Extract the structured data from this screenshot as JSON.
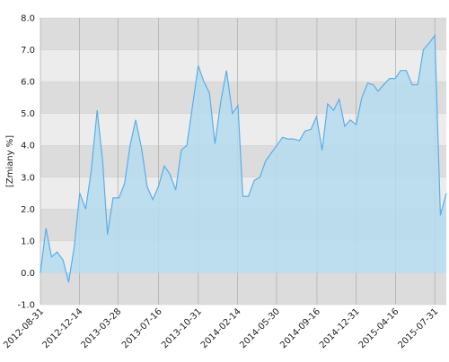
{
  "chart_data": {
    "type": "area",
    "y_label": "[Zmiany %]",
    "x": [
      "2012-08-31",
      "2012-09-15",
      "2012-09-30",
      "2012-10-15",
      "2012-10-31",
      "2012-11-15",
      "2012-11-30",
      "2012-12-15",
      "2012-12-31",
      "2013-01-15",
      "2013-01-31",
      "2013-02-15",
      "2013-02-28",
      "2013-03-15",
      "2013-03-31",
      "2013-04-15",
      "2013-04-30",
      "2013-05-15",
      "2013-05-31",
      "2013-06-15",
      "2013-06-30",
      "2013-07-15",
      "2013-07-31",
      "2013-08-15",
      "2013-08-31",
      "2013-09-15",
      "2013-09-30",
      "2013-10-15",
      "2013-10-31",
      "2013-11-15",
      "2013-11-30",
      "2013-12-15",
      "2013-12-31",
      "2014-01-15",
      "2014-01-31",
      "2014-02-15",
      "2014-02-28",
      "2014-03-15",
      "2014-03-31",
      "2014-04-15",
      "2014-04-30",
      "2014-05-15",
      "2014-05-31",
      "2014-06-15",
      "2014-06-30",
      "2014-07-15",
      "2014-07-31",
      "2014-08-15",
      "2014-08-31",
      "2014-09-15",
      "2014-09-30",
      "2014-10-15",
      "2014-10-31",
      "2014-11-15",
      "2014-11-30",
      "2014-12-15",
      "2014-12-31",
      "2015-01-15",
      "2015-01-31",
      "2015-02-15",
      "2015-02-28",
      "2015-03-15",
      "2015-03-31",
      "2015-04-15",
      "2015-04-30",
      "2015-05-15",
      "2015-05-31",
      "2015-06-15",
      "2015-06-30",
      "2015-07-15",
      "2015-07-31",
      "2015-08-15",
      "2015-08-31"
    ],
    "series": [
      {
        "color": "#5aaee8",
        "fill": "#b5dcf0",
        "values": [
          0.0,
          1.4,
          0.5,
          0.65,
          0.4,
          -0.3,
          0.8,
          2.5,
          2.0,
          3.2,
          5.1,
          3.5,
          1.2,
          2.35,
          2.35,
          2.8,
          4.0,
          4.8,
          3.9,
          2.7,
          2.3,
          2.7,
          3.35,
          3.1,
          2.6,
          3.85,
          4.0,
          5.2,
          6.5,
          6.0,
          5.65,
          4.05,
          5.4,
          6.35,
          5.0,
          5.25,
          2.4,
          2.4,
          2.9,
          3.0,
          3.5,
          3.75,
          4.0,
          4.25,
          4.2,
          4.2,
          4.15,
          4.45,
          4.5,
          4.9,
          3.85,
          5.3,
          5.1,
          5.45,
          4.6,
          4.8,
          4.65,
          5.5,
          5.95,
          5.9,
          5.7,
          5.9,
          6.1,
          6.1,
          6.35,
          6.35,
          5.9,
          5.9,
          7.0,
          7.2,
          7.45,
          1.8,
          2.5
        ]
      }
    ],
    "xlim": [
      "2012-08-31",
      "2015-08-31"
    ],
    "xticks": [
      "2012-08-31",
      "2012-12-14",
      "2013-03-28",
      "2013-07-16",
      "2013-10-31",
      "2014-02-14",
      "2014-05-30",
      "2014-09-16",
      "2014-12-31",
      "2015-04-16",
      "2015-07-31"
    ],
    "ylim": [
      -1,
      8
    ],
    "yticks": [
      {
        "value": -1,
        "label": "-1.0"
      },
      {
        "value": 0,
        "label": "0.0"
      },
      {
        "value": 1,
        "label": "1.0"
      },
      {
        "value": 2,
        "label": "2.0"
      },
      {
        "value": 3,
        "label": "3.0"
      },
      {
        "value": 4,
        "label": "4.0"
      },
      {
        "value": 5,
        "label": "5.0"
      },
      {
        "value": 6,
        "label": "6.0"
      },
      {
        "value": 7,
        "label": "7.0"
      },
      {
        "value": 8,
        "label": "8.0"
      }
    ],
    "grid": true
  }
}
